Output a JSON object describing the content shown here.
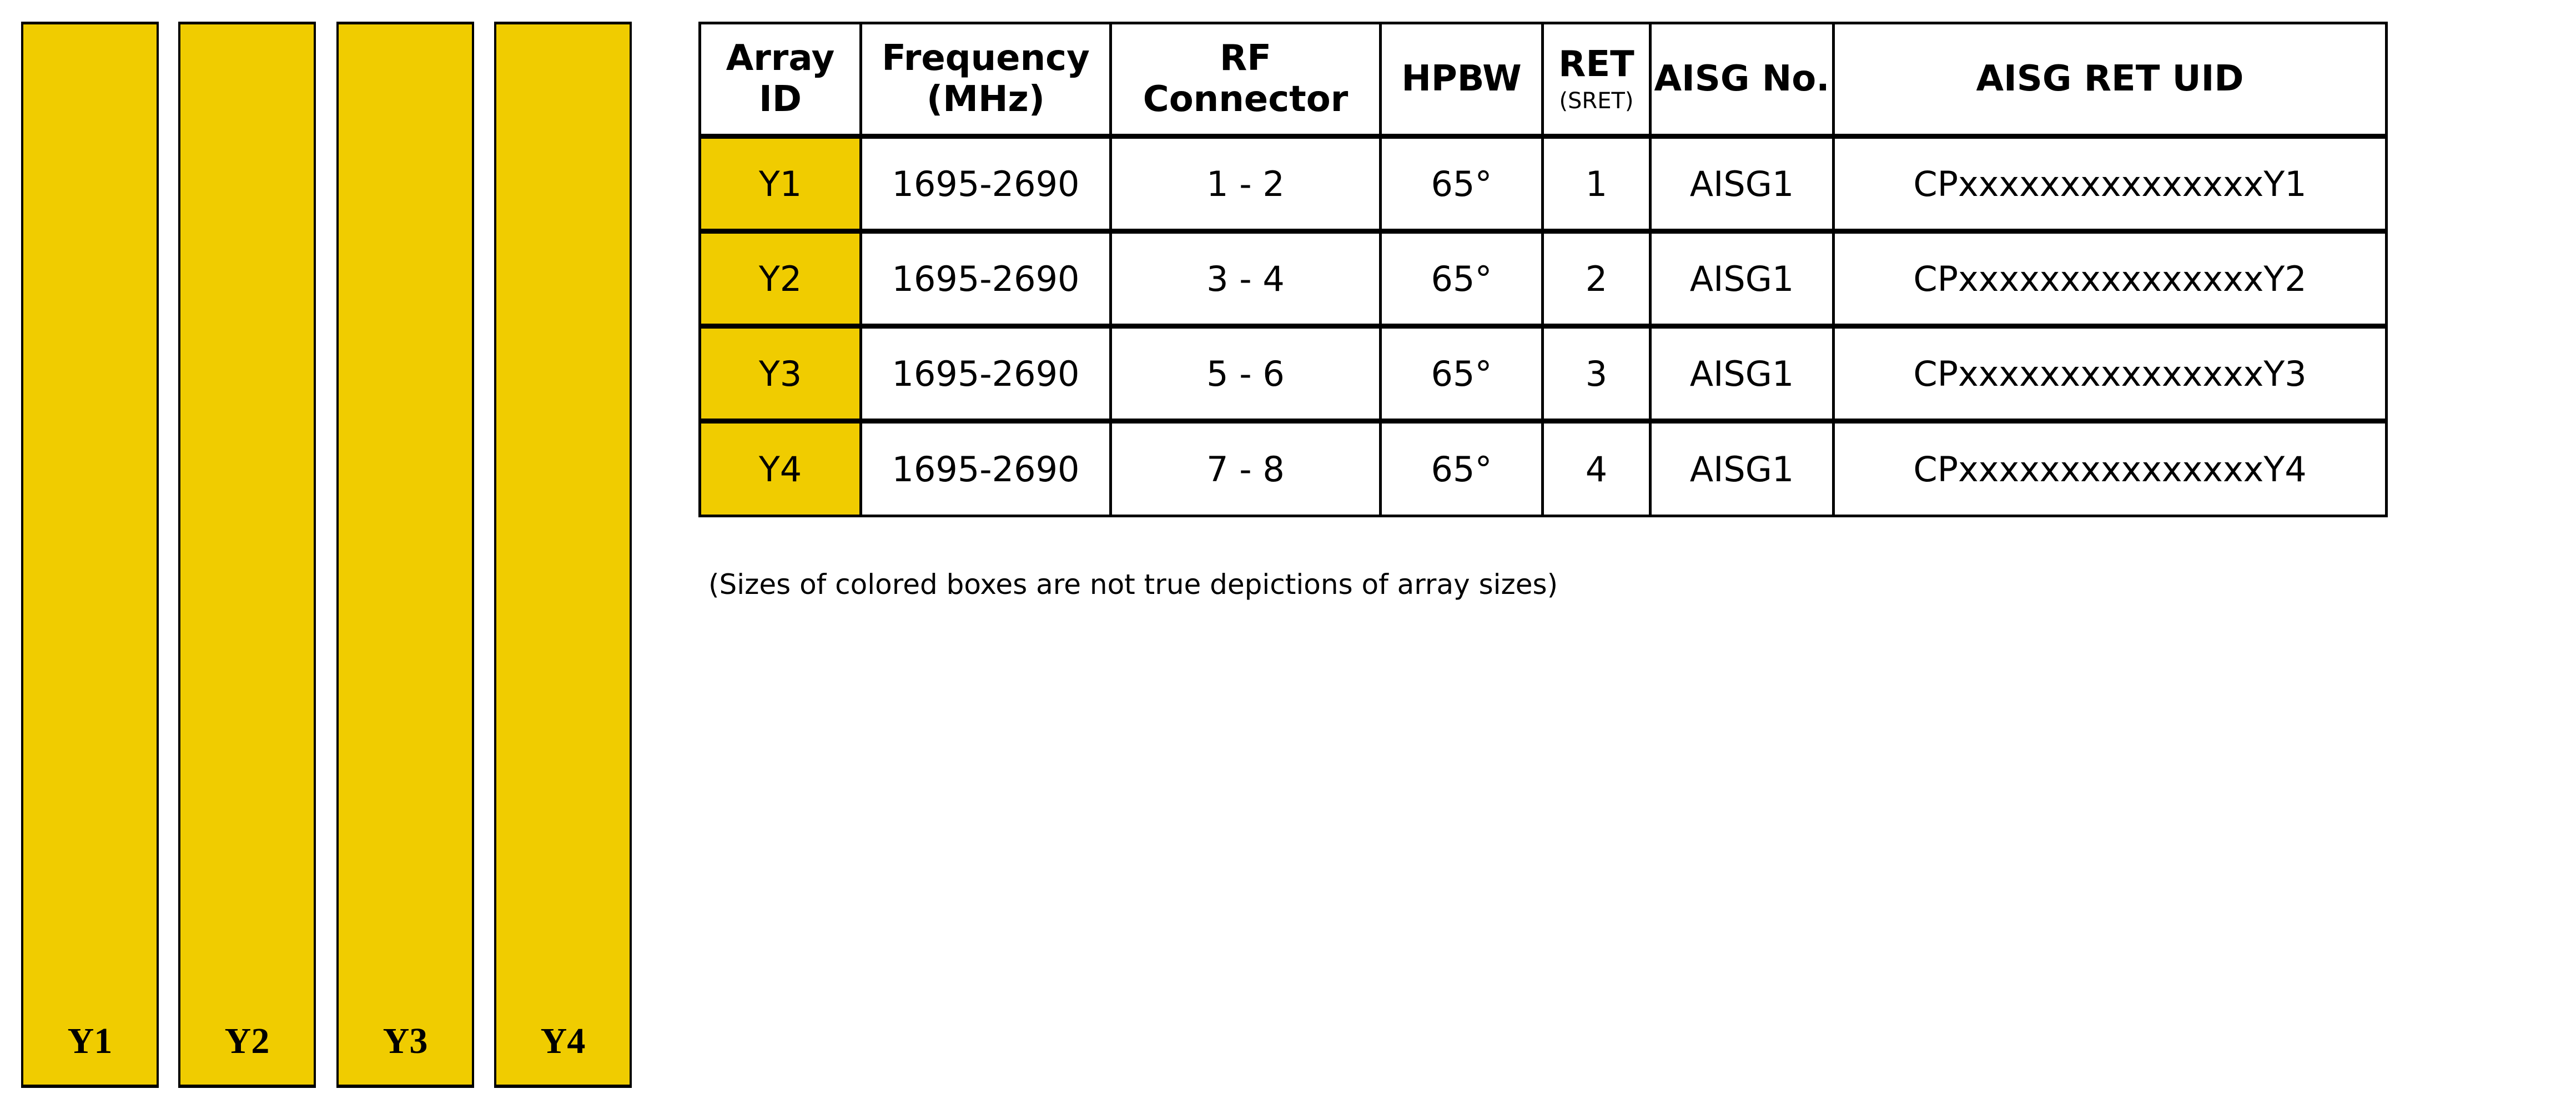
{
  "colors": {
    "array_fill": "#f0cc00",
    "border": "#000000"
  },
  "arrays": [
    {
      "label": "Y1"
    },
    {
      "label": "Y2"
    },
    {
      "label": "Y3"
    },
    {
      "label": "Y4"
    }
  ],
  "table": {
    "headers": {
      "array_id": "Array ID",
      "frequency": "Frequency",
      "frequency_unit": "(MHz)",
      "rf_connector": "RF Connector",
      "hpbw": "HPBW",
      "ret": "RET",
      "ret_sub": "(SRET)",
      "aisg_no": "AISG No.",
      "aisg_ret_uid": "AISG RET UID"
    },
    "rows": [
      {
        "array_id": "Y1",
        "frequency": "1695-2690",
        "rf_connector": "1 - 2",
        "hpbw": "65°",
        "ret": "1",
        "aisg_no": "AISG1",
        "uid": "CPxxxxxxxxxxxxxxxY1"
      },
      {
        "array_id": "Y2",
        "frequency": "1695-2690",
        "rf_connector": "3 - 4",
        "hpbw": "65°",
        "ret": "2",
        "aisg_no": "AISG1",
        "uid": "CPxxxxxxxxxxxxxxxY2"
      },
      {
        "array_id": "Y3",
        "frequency": "1695-2690",
        "rf_connector": "5 - 6",
        "hpbw": "65°",
        "ret": "3",
        "aisg_no": "AISG1",
        "uid": "CPxxxxxxxxxxxxxxxY3"
      },
      {
        "array_id": "Y4",
        "frequency": "1695-2690",
        "rf_connector": "7 - 8",
        "hpbw": "65°",
        "ret": "4",
        "aisg_no": "AISG1",
        "uid": "CPxxxxxxxxxxxxxxxY4"
      }
    ]
  },
  "note": "(Sizes of colored boxes are not true depictions of array sizes)"
}
